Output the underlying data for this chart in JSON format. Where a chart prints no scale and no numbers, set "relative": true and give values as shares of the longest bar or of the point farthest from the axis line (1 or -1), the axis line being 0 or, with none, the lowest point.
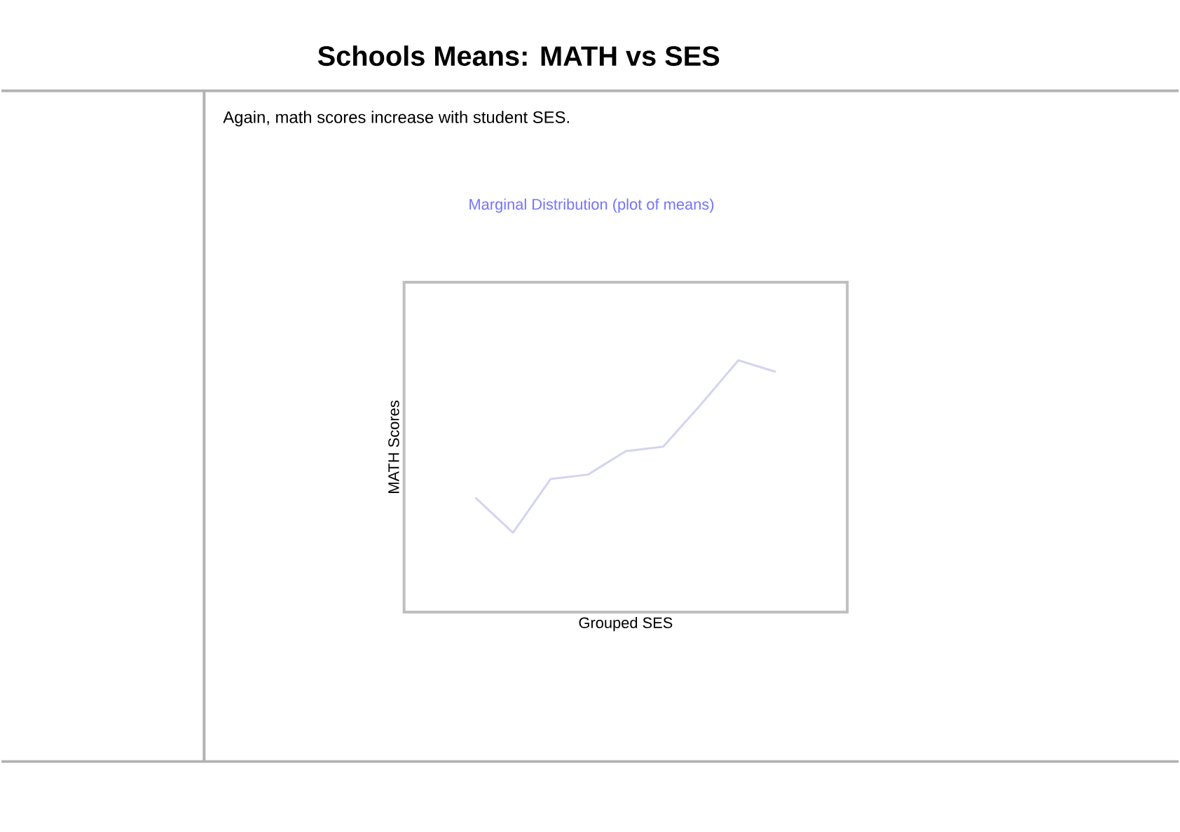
{
  "chart_data": {
    "type": "line",
    "title": "Schools Means: MATH vs SES",
    "subtitle": "Again, math scores increase with student SES.",
    "annotations": [
      "Marginal Distribution (plot of means)"
    ],
    "xlabel": "Grouped SES",
    "ylabel": "MATH Scores",
    "relative": true,
    "categories": [
      null,
      null,
      null,
      null,
      null,
      null,
      null,
      null,
      null
    ],
    "values": [
      0.454,
      0.315,
      0.528,
      0.546,
      0.639,
      0.657,
      0.824,
      1,
      0.954
    ],
    "color": "#d4d4f0"
  }
}
